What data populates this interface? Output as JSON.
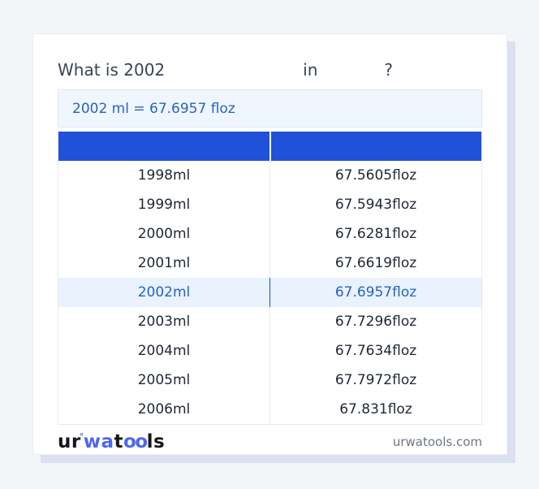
{
  "title": {
    "prefix": "What is 2002",
    "connector": "in",
    "question_mark": "?"
  },
  "answer": {
    "text": "2002 ml = 67.6957 floz"
  },
  "table": {
    "header": [
      "",
      ""
    ],
    "highlighted_ml": "2002ml",
    "rows": [
      {
        "ml": "1998ml",
        "floz": "67.5605floz"
      },
      {
        "ml": "1999ml",
        "floz": "67.5943floz"
      },
      {
        "ml": "2000ml",
        "floz": "67.6281floz"
      },
      {
        "ml": "2001ml",
        "floz": "67.6619floz"
      },
      {
        "ml": "2002ml",
        "floz": "67.6957floz"
      },
      {
        "ml": "2003ml",
        "floz": "67.7296floz"
      },
      {
        "ml": "2004ml",
        "floz": "67.7634floz"
      },
      {
        "ml": "2005ml",
        "floz": "67.7972floz"
      },
      {
        "ml": "2006ml",
        "floz": "67.831floz"
      }
    ]
  },
  "footer": {
    "logo": {
      "ur": "ur",
      "degree": "°",
      "wa": "wa",
      "t": "t",
      "oo": "oo",
      "ls": "ls"
    },
    "site": "urwatools.com"
  },
  "colors": {
    "page_background": "#f3f5f9",
    "card_background": "#ffffff",
    "card_shadow": "#dbe1ee",
    "table_header_blue": "#2151d8",
    "highlight_row_background": "#e9f2fd",
    "highlight_row_text": "#2563c8",
    "answer_box_background": "#eff6fd",
    "answer_text": "#2a62c4",
    "brand_blue": "#4f66f1",
    "body_text": "#222936",
    "muted_text": "#6e7582"
  }
}
